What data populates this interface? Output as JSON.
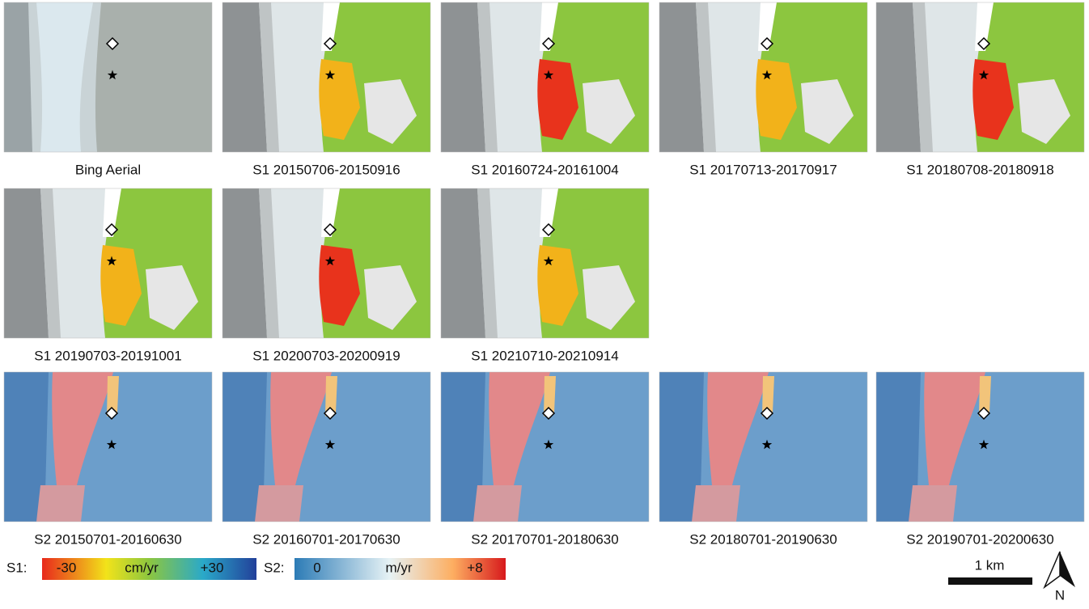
{
  "panels": [
    {
      "caption": "Bing Aerial"
    },
    {
      "caption": "S1 20150706-20150916"
    },
    {
      "caption": "S1 20160724-20161004"
    },
    {
      "caption": "S1 20170713-20170917"
    },
    {
      "caption": "S1 20180708-20180918"
    },
    {
      "caption": "S1 20190703-20191001"
    },
    {
      "caption": "S1 20200703-20200919"
    },
    {
      "caption": "S1 20210710-20210914"
    },
    {
      "caption": "S2 20150701-20160630"
    },
    {
      "caption": "S2 20160701-20170630"
    },
    {
      "caption": "S2 20170701-20180630"
    },
    {
      "caption": "S2 20180701-20190630"
    },
    {
      "caption": "S2 20190701-20200630"
    }
  ],
  "legend": {
    "s1": {
      "label": "S1:",
      "min": "-30",
      "unit": "cm/yr",
      "max": "+30"
    },
    "s2": {
      "label": "S2:",
      "min": "0",
      "unit": "m/yr",
      "max": "+8"
    }
  },
  "scale_bar": "1 km",
  "north": "N"
}
